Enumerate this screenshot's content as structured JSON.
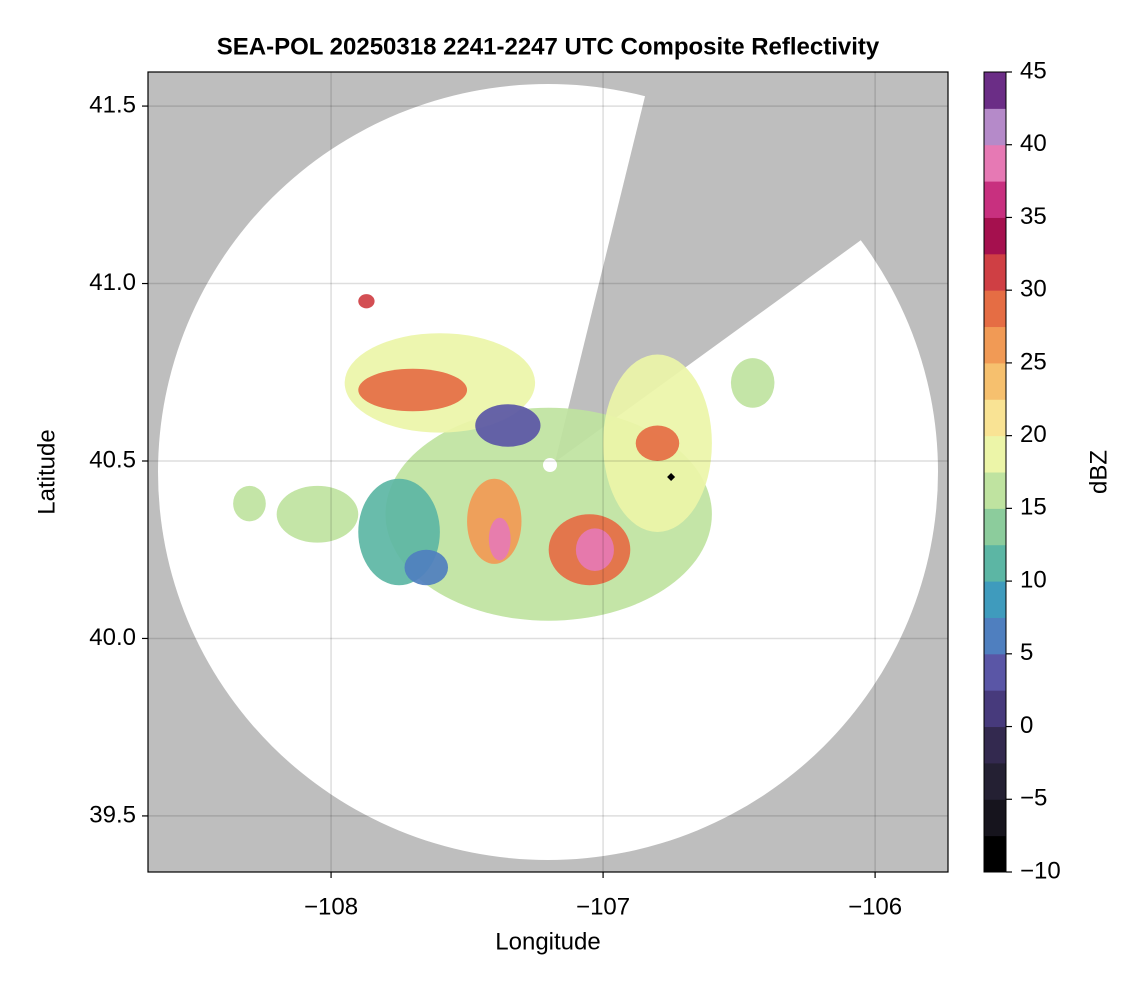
{
  "chart_data": {
    "type": "map",
    "title": "SEA-POL 20250318 2241-2247 UTC Composite Reflectivity",
    "x_label": "Longitude",
    "y_label": "Latitude",
    "xlim": [
      -108.673,
      -105.732
    ],
    "ylim": [
      39.342,
      41.596
    ],
    "xticks": [
      {
        "value": -108,
        "label": "−108"
      },
      {
        "value": -107,
        "label": "−107"
      },
      {
        "value": -106,
        "label": "−106"
      }
    ],
    "yticks": [
      39.5,
      {
        "value": 40.0,
        "label": "40.0"
      },
      40.5,
      {
        "value": 41.0,
        "label": "41.0"
      },
      41.5
    ],
    "grid": true,
    "colorbar": {
      "label": "dBZ",
      "clim": [
        -10,
        45
      ],
      "ticks": [
        {
          "value": -10,
          "label": "−10"
        },
        {
          "value": -5,
          "label": "−5"
        },
        0,
        5,
        10,
        15,
        20,
        25,
        30,
        35,
        40,
        45
      ],
      "colors": [
        "#000000",
        "#16141d",
        "#242033",
        "#33294f",
        "#473a7c",
        "#5a56a6",
        "#4f7fbf",
        "#3f9bbd",
        "#5cb6a4",
        "#8ccc9c",
        "#bfe3a0",
        "#ecf5a8",
        "#f9e394",
        "#f6c06e",
        "#f19a55",
        "#e56d44",
        "#cf3f44",
        "#a5104e",
        "#c8307f",
        "#e679b4",
        "#b58ac9",
        "#6b2d86"
      ]
    },
    "echoes": [
      {
        "lon": -107.2,
        "lat": 40.35,
        "rx": 0.6,
        "ry": 0.3,
        "dbz": 15
      },
      {
        "lon": -107.6,
        "lat": 40.72,
        "rx": 0.35,
        "ry": 0.14,
        "dbz": 17.5
      },
      {
        "lon": -106.8,
        "lat": 40.55,
        "rx": 0.2,
        "ry": 0.25,
        "dbz": 17.5
      },
      {
        "lon": -108.05,
        "lat": 40.35,
        "rx": 0.15,
        "ry": 0.08,
        "dbz": 15
      },
      {
        "lon": -107.75,
        "lat": 40.3,
        "rx": 0.15,
        "ry": 0.15,
        "dbz": 10
      },
      {
        "lon": -107.65,
        "lat": 40.2,
        "rx": 0.08,
        "ry": 0.05,
        "dbz": 5
      },
      {
        "lon": -107.7,
        "lat": 40.7,
        "rx": 0.2,
        "ry": 0.06,
        "dbz": 27.5
      },
      {
        "lon": -107.35,
        "lat": 40.6,
        "rx": 0.12,
        "ry": 0.06,
        "dbz": 2.5
      },
      {
        "lon": -107.05,
        "lat": 40.25,
        "rx": 0.15,
        "ry": 0.1,
        "dbz": 27.5
      },
      {
        "lon": -107.03,
        "lat": 40.25,
        "rx": 0.07,
        "ry": 0.06,
        "dbz": 37.5
      },
      {
        "lon": -107.4,
        "lat": 40.33,
        "rx": 0.1,
        "ry": 0.12,
        "dbz": 25
      },
      {
        "lon": -107.38,
        "lat": 40.28,
        "rx": 0.04,
        "ry": 0.06,
        "dbz": 37.5
      },
      {
        "lon": -106.8,
        "lat": 40.55,
        "rx": 0.08,
        "ry": 0.05,
        "dbz": 27.5
      },
      {
        "lon": -106.45,
        "lat": 40.72,
        "rx": 0.08,
        "ry": 0.07,
        "dbz": 15
      },
      {
        "lon": -108.3,
        "lat": 40.38,
        "rx": 0.06,
        "ry": 0.05,
        "dbz": 15
      },
      {
        "lon": -107.87,
        "lat": 40.95,
        "rx": 0.03,
        "ry": 0.02,
        "dbz": 30
      }
    ],
    "marker": {
      "lon": -106.75,
      "lat": 40.455
    }
  }
}
